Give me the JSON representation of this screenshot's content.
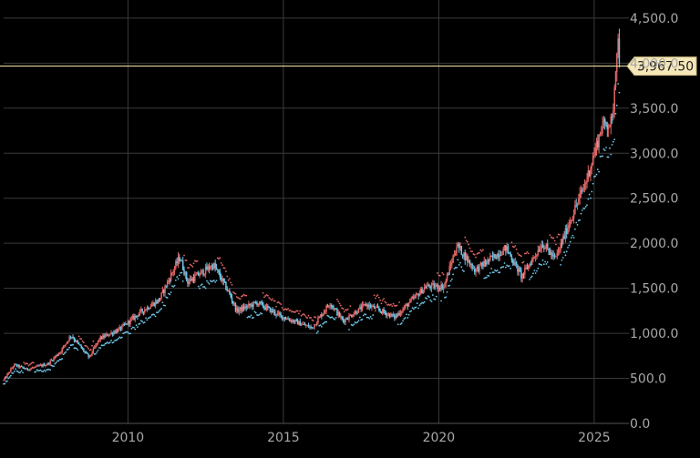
{
  "chart_data": {
    "type": "candlestick",
    "title": "",
    "xlabel": "",
    "ylabel": "",
    "x_range": [
      "2006-01",
      "2025-12"
    ],
    "ylim": [
      0,
      4600
    ],
    "x_ticks": [
      {
        "label": "2010",
        "value": "2010-01"
      },
      {
        "label": "2015",
        "value": "2015-01"
      },
      {
        "label": "2020",
        "value": "2020-01"
      },
      {
        "label": "2025",
        "value": "2025-01"
      }
    ],
    "y_ticks": [
      {
        "label": "4,500.0",
        "value": 4500
      },
      {
        "label": "4,000.0",
        "value": 4000
      },
      {
        "label": "3,500.0",
        "value": 3500
      },
      {
        "label": "3,000.0",
        "value": 3000
      },
      {
        "label": "2,500.0",
        "value": 2500
      },
      {
        "label": "2,000.0",
        "value": 2000
      },
      {
        "label": "1,500.0",
        "value": 1500
      },
      {
        "label": "1,000.0",
        "value": 1000
      },
      {
        "label": "500.0",
        "value": 500
      },
      {
        "label": "0.0",
        "value": 0
      }
    ],
    "grid": true,
    "axis_position": "right",
    "colors": {
      "background": "#000000",
      "grid": "#3a3a3a",
      "axis_text": "#a8a8a8",
      "up_candle": "#e06666",
      "down_candle": "#6ec6e6",
      "last_price_line": "#e6d8a0",
      "last_price_label_bg": "#f5e7b8",
      "last_price_label_text": "#202020"
    },
    "last_price": {
      "value": 3967.5,
      "label": "3,967.50"
    },
    "price_points": [
      {
        "date": "2006-01",
        "value": 480
      },
      {
        "date": "2006-05",
        "value": 650
      },
      {
        "date": "2006-10",
        "value": 600
      },
      {
        "date": "2007-06",
        "value": 660
      },
      {
        "date": "2007-11",
        "value": 800
      },
      {
        "date": "2008-03",
        "value": 980
      },
      {
        "date": "2008-10",
        "value": 730
      },
      {
        "date": "2009-02",
        "value": 940
      },
      {
        "date": "2009-10",
        "value": 1050
      },
      {
        "date": "2010-06",
        "value": 1240
      },
      {
        "date": "2011-01",
        "value": 1370
      },
      {
        "date": "2011-09",
        "value": 1850
      },
      {
        "date": "2011-12",
        "value": 1570
      },
      {
        "date": "2012-10",
        "value": 1760
      },
      {
        "date": "2013-04",
        "value": 1450
      },
      {
        "date": "2013-07",
        "value": 1250
      },
      {
        "date": "2014-03",
        "value": 1340
      },
      {
        "date": "2014-12",
        "value": 1190
      },
      {
        "date": "2015-12",
        "value": 1060
      },
      {
        "date": "2016-07",
        "value": 1340
      },
      {
        "date": "2016-12",
        "value": 1140
      },
      {
        "date": "2017-09",
        "value": 1320
      },
      {
        "date": "2018-08",
        "value": 1180
      },
      {
        "date": "2019-08",
        "value": 1520
      },
      {
        "date": "2020-03",
        "value": 1520
      },
      {
        "date": "2020-08",
        "value": 1980
      },
      {
        "date": "2021-03",
        "value": 1700
      },
      {
        "date": "2022-03",
        "value": 1950
      },
      {
        "date": "2022-09",
        "value": 1630
      },
      {
        "date": "2023-05",
        "value": 2000
      },
      {
        "date": "2023-10",
        "value": 1820
      },
      {
        "date": "2024-03",
        "value": 2200
      },
      {
        "date": "2024-10",
        "value": 2700
      },
      {
        "date": "2025-04",
        "value": 3300
      },
      {
        "date": "2025-08",
        "value": 3350
      },
      {
        "date": "2025-10",
        "value": 4300
      },
      {
        "date": "2025-11",
        "value": 3967.5
      }
    ]
  }
}
